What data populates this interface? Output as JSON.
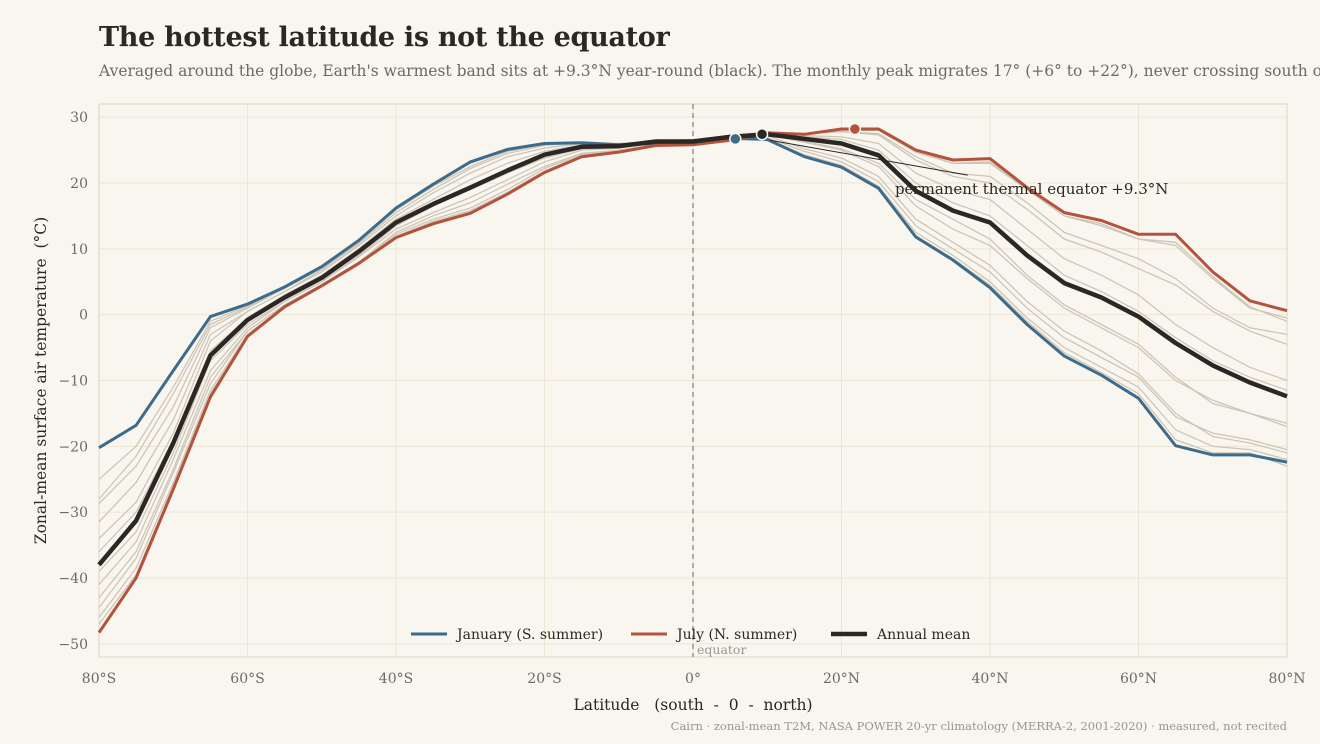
{
  "header": {
    "title": "The hottest latitude is not the equator",
    "subtitle": "Averaged around the globe, Earth's warmest band sits at +9.3°N year-round (black). The monthly peak migrates 17° (+6° to +22°), never crossing south of the equator."
  },
  "caption": "Cairn · zonal-mean T2M, NASA POWER 20-yr climatology (MERRA-2, 2001-2020) · measured, not recited",
  "colors": {
    "background": "#f9f6ef",
    "grid": "#ede6d4",
    "frame": "#ddd5c2",
    "january": "#3d6b8c",
    "july": "#b4533c",
    "annual": "#2a2724",
    "months": "#cdc6b8",
    "equator": "#8c8880"
  },
  "chart_data": {
    "type": "line",
    "title": "The hottest latitude is not the equator",
    "xlabel": "Latitude   (south  -  0  -  north)",
    "ylabel": "Zonal-mean surface air temperature  (°C)",
    "xlim": [
      -80,
      80
    ],
    "ylim": [
      -52,
      32
    ],
    "x_ticks": [
      -80,
      -60,
      -40,
      -20,
      0,
      20,
      40,
      60,
      80
    ],
    "x_tick_labels": [
      "80°S",
      "60°S",
      "40°S",
      "20°S",
      "0°",
      "20°N",
      "40°N",
      "60°N",
      "80°N"
    ],
    "y_ticks": [
      30,
      20,
      10,
      0,
      -10,
      -20,
      -30,
      -40,
      -50
    ],
    "y_tick_labels": [
      "30",
      "20",
      "10",
      "0",
      "−10",
      "−20",
      "−30",
      "−40",
      "−50"
    ],
    "grid": true,
    "legend_position": "bottom-center",
    "x": [
      -80,
      -75,
      -70,
      -65,
      -60,
      -55,
      -50,
      -45,
      -40,
      -35,
      -30,
      -25,
      -20,
      -15,
      -10,
      -5,
      0,
      5,
      10,
      15,
      20,
      25,
      30,
      35,
      40,
      45,
      50,
      55,
      60,
      65,
      70,
      75,
      80
    ],
    "series": [
      {
        "name": "January (S. summer)",
        "color": "#3d6b8c",
        "values": [
          -20.2,
          -16.8,
          -8.5,
          -0.3,
          1.6,
          4.2,
          7.3,
          11.3,
          16.2,
          19.8,
          23.2,
          25.1,
          26.0,
          26.1,
          25.8,
          26.0,
          26.3,
          26.8,
          26.6,
          24.0,
          22.4,
          19.2,
          11.8,
          8.3,
          4.1,
          -1.5,
          -6.3,
          -9.2,
          -12.7,
          -19.9,
          -21.3,
          -21.3,
          -22.4
        ]
      },
      {
        "name": "July (N. summer)",
        "color": "#b4533c",
        "values": [
          -48.3,
          -40.0,
          -26.5,
          -12.5,
          -3.3,
          1.2,
          4.4,
          7.8,
          11.7,
          13.8,
          15.4,
          18.3,
          21.6,
          24.0,
          24.7,
          25.7,
          25.8,
          26.5,
          27.6,
          27.4,
          28.2,
          28.2,
          25.0,
          23.5,
          23.7,
          19.3,
          15.5,
          14.3,
          12.2,
          12.2,
          6.5,
          2.1,
          0.6
        ]
      },
      {
        "name": "Annual mean",
        "color": "#2a2724",
        "values": [
          -38.0,
          -31.3,
          -19.5,
          -6.2,
          -0.8,
          2.6,
          5.6,
          9.6,
          14.0,
          16.8,
          19.3,
          21.9,
          24.3,
          25.5,
          25.6,
          26.3,
          26.3,
          27.0,
          27.4,
          26.7,
          26.0,
          24.2,
          18.8,
          15.8,
          14.0,
          9.0,
          4.8,
          2.6,
          -0.3,
          -4.3,
          -7.7,
          -10.3,
          -12.4
        ]
      }
    ],
    "month_series": [
      [
        -28.7,
        -23.0,
        -14.0,
        -2.0,
        1.0,
        4.0,
        7.0,
        11.0,
        15.9,
        19.5,
        22.5,
        24.8,
        25.9,
        26.2,
        26.0,
        26.3,
        26.5,
        27.0,
        27.2,
        25.2,
        23.8,
        21.0,
        14.5,
        11.0,
        7.5,
        2.0,
        -2.5,
        -5.5,
        -9.0,
        -15.0,
        -18.5,
        -19.5,
        -21.0
      ],
      [
        -34.0,
        -28.5,
        -18.0,
        -4.0,
        0.5,
        3.5,
        6.5,
        10.5,
        15.0,
        18.5,
        21.5,
        24.0,
        25.3,
        26.0,
        26.0,
        26.4,
        26.6,
        27.2,
        27.6,
        26.3,
        25.2,
        23.0,
        17.5,
        14.5,
        11.5,
        6.0,
        1.5,
        -1.5,
        -4.5,
        -9.5,
        -13.5,
        -15.0,
        -16.5
      ],
      [
        -39.0,
        -33.0,
        -21.0,
        -7.0,
        -1.5,
        2.0,
        5.0,
        9.0,
        13.5,
        16.5,
        19.0,
        21.5,
        23.8,
        25.2,
        25.5,
        26.2,
        26.4,
        27.2,
        27.8,
        27.2,
        27.0,
        26.0,
        21.5,
        19.0,
        17.5,
        13.0,
        8.5,
        6.0,
        3.0,
        -1.5,
        -5.0,
        -8.0,
        -10.0
      ],
      [
        -43.0,
        -36.0,
        -23.5,
        -9.5,
        -2.5,
        1.5,
        4.5,
        8.0,
        12.5,
        15.0,
        17.0,
        19.8,
        22.5,
        24.5,
        25.0,
        25.9,
        26.1,
        26.9,
        27.8,
        27.5,
        27.8,
        27.5,
        24.0,
        21.5,
        21.0,
        17.0,
        12.5,
        10.5,
        8.5,
        5.5,
        1.0,
        -2.0,
        -3.0
      ],
      [
        -46.0,
        -38.5,
        -25.5,
        -11.5,
        -3.0,
        1.2,
        4.3,
        7.7,
        11.9,
        14.2,
        15.8,
        18.6,
        21.8,
        24.1,
        24.8,
        25.8,
        25.9,
        26.7,
        27.7,
        27.5,
        28.0,
        28.0,
        25.0,
        23.0,
        23.0,
        19.0,
        15.0,
        13.5,
        11.5,
        10.5,
        5.5,
        1.0,
        -0.5
      ],
      [
        -47.0,
        -39.5,
        -26.0,
        -12.0,
        -3.2,
        1.0,
        4.2,
        7.6,
        11.8,
        14.0,
        15.6,
        18.4,
        21.6,
        24.0,
        24.7,
        25.7,
        25.8,
        26.6,
        27.6,
        27.4,
        28.1,
        28.0,
        24.7,
        23.0,
        23.2,
        19.0,
        15.0,
        13.8,
        11.5,
        11.0,
        5.8,
        1.2,
        -1.0
      ],
      [
        -44.5,
        -37.0,
        -24.0,
        -10.5,
        -2.5,
        1.5,
        4.5,
        8.0,
        12.2,
        14.5,
        16.2,
        19.0,
        22.2,
        24.3,
        24.9,
        25.9,
        26.0,
        26.8,
        27.7,
        27.5,
        27.8,
        27.3,
        23.5,
        21.0,
        20.0,
        16.0,
        11.5,
        9.5,
        7.0,
        4.5,
        0.5,
        -2.5,
        -4.5
      ],
      [
        -41.0,
        -34.5,
        -22.0,
        -8.5,
        -2.0,
        2.0,
        5.0,
        8.8,
        13.0,
        15.5,
        17.8,
        20.5,
        23.2,
        25.0,
        25.3,
        26.2,
        26.3,
        27.1,
        27.6,
        27.0,
        26.6,
        25.0,
        20.0,
        17.0,
        15.0,
        10.5,
        6.0,
        3.5,
        0.5,
        -3.5,
        -7.0,
        -9.5,
        -11.5
      ],
      [
        -36.0,
        -30.0,
        -19.0,
        -5.5,
        -0.5,
        3.0,
        6.0,
        10.0,
        14.5,
        17.5,
        20.5,
        23.0,
        24.8,
        25.8,
        25.8,
        26.3,
        26.4,
        27.0,
        27.3,
        26.2,
        25.0,
        22.5,
        16.5,
        13.0,
        10.5,
        5.5,
        1.0,
        -2.0,
        -5.0,
        -10.0,
        -13.0,
        -15.0,
        -17.0
      ],
      [
        -31.5,
        -25.5,
        -16.0,
        -3.0,
        0.5,
        3.5,
        6.8,
        10.8,
        15.5,
        19.0,
        22.2,
        24.5,
        25.7,
        26.1,
        25.9,
        26.2,
        26.4,
        26.9,
        26.9,
        24.8,
        23.2,
        20.2,
        13.5,
        10.0,
        6.5,
        1.0,
        -3.5,
        -6.5,
        -9.5,
        -15.5,
        -18.0,
        -19.0,
        -20.5
      ],
      [
        -28.0,
        -21.5,
        -12.0,
        -1.5,
        1.2,
        4.0,
        7.2,
        11.2,
        16.0,
        19.7,
        23.0,
        25.0,
        26.0,
        26.2,
        25.9,
        26.1,
        26.4,
        26.8,
        26.7,
        24.3,
        22.7,
        19.5,
        12.5,
        9.0,
        5.0,
        -0.5,
        -5.0,
        -8.0,
        -11.0,
        -17.5,
        -20.0,
        -20.5,
        -22.0
      ],
      [
        -25.0,
        -20.0,
        -11.0,
        -1.0,
        1.4,
        4.1,
        7.3,
        11.3,
        16.1,
        19.8,
        23.1,
        25.1,
        26.0,
        26.2,
        25.9,
        26.1,
        26.4,
        26.8,
        26.6,
        24.1,
        22.5,
        19.3,
        12.0,
        8.5,
        4.5,
        -1.0,
        -5.8,
        -8.8,
        -12.0,
        -19.0,
        -21.0,
        -21.0,
        -23.0
      ]
    ],
    "equator_label": "equator",
    "annotation": "permanent thermal equator  +9.3°N",
    "peaks": {
      "january": {
        "x": 5.7,
        "y": 26.7
      },
      "july": {
        "x": 21.8,
        "y": 28.2
      },
      "annual": {
        "x": 9.3,
        "y": 27.4
      }
    }
  }
}
